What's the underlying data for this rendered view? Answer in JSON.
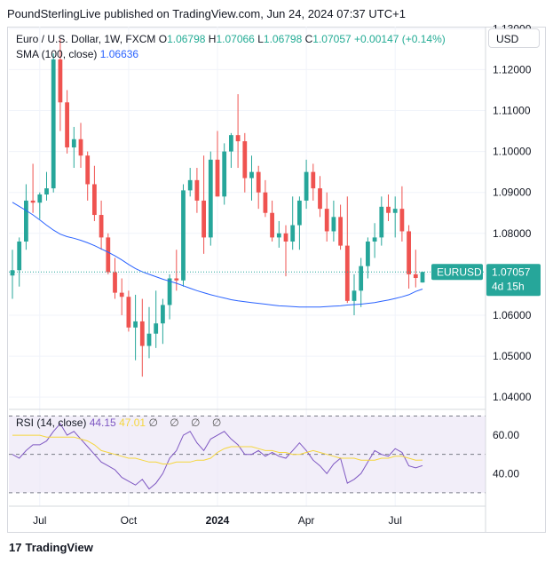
{
  "header": {
    "text": "PoundSterlingLive published on TradingView.com, Jun 24, 2024 07:37 UTC+1"
  },
  "legend": {
    "symbol": "Euro / U.S. Dollar, 1W, FXCM",
    "o_label": "O",
    "o_value": "1.06798",
    "h_label": "H",
    "h_value": "1.07066",
    "l_label": "L",
    "l_value": "1.06798",
    "c_label": "C",
    "c_value": "1.07057",
    "change": "+0.00147 (+0.14%)",
    "sma_label": "SMA (100, close)",
    "sma_value": "1.06636"
  },
  "currency_button": "USD",
  "price_tag": {
    "symbol": "EURUSD",
    "price": "1.07057",
    "countdown": "4d 15h"
  },
  "rsi_legend": {
    "label": "RSI (14, close)",
    "rsi_value": "44.15",
    "sma_value": "47.01",
    "icons": "∅ ∅ ∅ ∅"
  },
  "branding": {
    "logo_mark": "17",
    "name": "TradingView"
  },
  "colors": {
    "up": "#26a69a",
    "down": "#ef5350",
    "sma": "#2962ff",
    "rsi": "#7e57c2",
    "rsi_sma": "#f5d63d",
    "rsi_band": "#ede7f6"
  },
  "chart_data": [
    {
      "type": "candlestick",
      "title": "Euro / U.S. Dollar, 1W, FXCM",
      "y_ticks": [
        "1.04000",
        "1.05000",
        "1.06000",
        "1.07000",
        "1.08000",
        "1.09000",
        "1.10000",
        "1.11000",
        "1.12000",
        "1.13000"
      ],
      "ylim": [
        1.037,
        1.1305
      ],
      "x_ticks": [
        {
          "label": "Jul",
          "index": 4
        },
        {
          "label": "Oct",
          "index": 17
        },
        {
          "label": "2024",
          "index": 30
        },
        {
          "label": "Apr",
          "index": 43
        },
        {
          "label": "Jul",
          "index": 56
        }
      ],
      "ohlc": [
        [
          1.0697,
          1.076,
          1.064,
          1.071
        ],
        [
          1.071,
          1.079,
          1.067,
          1.078
        ],
        [
          1.078,
          1.092,
          1.076,
          1.088
        ],
        [
          1.088,
          1.097,
          1.085,
          1.0875
        ],
        [
          1.0875,
          1.09,
          1.0835,
          1.0895
        ],
        [
          1.0895,
          1.095,
          1.088,
          1.091
        ],
        [
          1.091,
          1.124,
          1.09,
          1.1225
        ],
        [
          1.1225,
          1.1275,
          1.105,
          1.112
        ],
        [
          1.112,
          1.115,
          1.0995,
          1.101
        ],
        [
          1.101,
          1.106,
          1.096,
          1.103
        ],
        [
          1.103,
          1.107,
          1.096,
          1.099
        ],
        [
          1.099,
          1.1,
          1.088,
          1.092
        ],
        [
          1.092,
          1.0965,
          1.083,
          1.0845
        ],
        [
          1.0845,
          1.088,
          1.076,
          1.079
        ],
        [
          1.079,
          1.08,
          1.07,
          1.0705
        ],
        [
          1.0705,
          1.074,
          1.064,
          1.0655
        ],
        [
          1.0655,
          1.069,
          1.06,
          1.0645
        ],
        [
          1.0645,
          1.066,
          1.056,
          1.057
        ],
        [
          1.057,
          1.065,
          1.049,
          1.0585
        ],
        [
          1.0585,
          1.064,
          1.045,
          1.0525
        ],
        [
          1.0525,
          1.062,
          1.0495,
          1.0555
        ],
        [
          1.0555,
          1.066,
          1.052,
          1.058
        ],
        [
          1.058,
          1.064,
          1.053,
          1.0625
        ],
        [
          1.0625,
          1.07,
          1.059,
          1.069
        ],
        [
          1.069,
          1.076,
          1.066,
          1.0685
        ],
        [
          1.0685,
          1.092,
          1.067,
          1.0905
        ],
        [
          1.0905,
          1.096,
          1.089,
          1.093
        ],
        [
          1.093,
          1.096,
          1.085,
          1.088
        ],
        [
          1.088,
          1.099,
          1.075,
          1.079
        ],
        [
          1.079,
          1.1,
          1.077,
          1.098
        ],
        [
          1.098,
          1.105,
          1.089,
          1.089
        ],
        [
          1.089,
          1.102,
          1.087,
          1.1
        ],
        [
          1.1,
          1.1045,
          1.096,
          1.104
        ],
        [
          1.104,
          1.114,
          1.096,
          1.1025
        ],
        [
          1.1025,
          1.1045,
          1.09,
          1.0935
        ],
        [
          1.0935,
          1.099,
          1.088,
          1.095
        ],
        [
          1.095,
          1.0965,
          1.086,
          1.09
        ],
        [
          1.09,
          1.093,
          1.084,
          1.085
        ],
        [
          1.085,
          1.088,
          1.078,
          1.079
        ],
        [
          1.079,
          1.083,
          1.0765,
          1.08
        ],
        [
          1.08,
          1.082,
          1.0695,
          1.078
        ],
        [
          1.078,
          1.089,
          1.076,
          1.082
        ],
        [
          1.082,
          1.089,
          1.076,
          1.088
        ],
        [
          1.088,
          1.098,
          1.086,
          1.095
        ],
        [
          1.095,
          1.097,
          1.088,
          1.091
        ],
        [
          1.091,
          1.094,
          1.084,
          1.086
        ],
        [
          1.086,
          1.09,
          1.078,
          1.0805
        ],
        [
          1.0805,
          1.088,
          1.078,
          1.084
        ],
        [
          1.084,
          1.087,
          1.076,
          1.077
        ],
        [
          1.077,
          1.089,
          1.063,
          1.0635
        ],
        [
          1.0635,
          1.07,
          1.06,
          1.066
        ],
        [
          1.066,
          1.074,
          1.062,
          1.072
        ],
        [
          1.072,
          1.079,
          1.069,
          1.078
        ],
        [
          1.078,
          1.0825,
          1.074,
          1.079
        ],
        [
          1.079,
          1.089,
          1.077,
          1.0865
        ],
        [
          1.0865,
          1.0895,
          1.083,
          1.085
        ],
        [
          1.085,
          1.089,
          1.079,
          1.086
        ],
        [
          1.086,
          1.0915,
          1.078,
          1.0805
        ],
        [
          1.0805,
          1.082,
          1.0665,
          1.07
        ],
        [
          1.07,
          1.076,
          1.0668,
          1.0691
        ],
        [
          1.068,
          1.07066,
          1.06798,
          1.07057
        ]
      ],
      "sma": {
        "name": "SMA (100, close)",
        "from_index": 0,
        "values": [
          1.0876,
          1.0866,
          1.0856,
          1.0845,
          1.0833,
          1.082,
          1.0808,
          1.0798,
          1.0792,
          1.0788,
          1.0783,
          1.0777,
          1.077,
          1.0762,
          1.0754,
          1.0745,
          1.0735,
          1.0724,
          1.0714,
          1.0706,
          1.07,
          1.0694,
          1.0688,
          1.0683,
          1.0678,
          1.0672,
          1.0666,
          1.066,
          1.0655,
          1.065,
          1.0646,
          1.0642,
          1.0638,
          1.0635,
          1.0633,
          1.0631,
          1.0629,
          1.0627,
          1.0625,
          1.0623,
          1.0622,
          1.0621,
          1.062,
          1.062,
          1.062,
          1.062,
          1.0621,
          1.0622,
          1.0623,
          1.0625,
          1.0626,
          1.0627,
          1.0629,
          1.0631,
          1.0634,
          1.0637,
          1.0641,
          1.0645,
          1.065,
          1.0658,
          1.0664
        ]
      },
      "last_price": 1.07057
    },
    {
      "type": "line",
      "title": "RSI (14, close)",
      "y_ticks": [
        "40.00",
        "60.00"
      ],
      "ylim": [
        23,
        73
      ],
      "bands": [
        30,
        50,
        70
      ],
      "series": [
        {
          "name": "RSI",
          "values": [
            50,
            48,
            52,
            55,
            55,
            57,
            62,
            66,
            60,
            62,
            58,
            54,
            50,
            46,
            44,
            42,
            38,
            36,
            34,
            37,
            32,
            35,
            40,
            48,
            52,
            60,
            62,
            56,
            52,
            58,
            60,
            62,
            58,
            55,
            50,
            50,
            52,
            49,
            51,
            49,
            48,
            52,
            56,
            52,
            47,
            44,
            40,
            45,
            48,
            35,
            37,
            40,
            46,
            52,
            50,
            49,
            53,
            51,
            44,
            43,
            44.15
          ]
        },
        {
          "name": "SMA",
          "values": [
            60,
            60,
            60,
            60,
            60,
            59,
            59,
            59,
            59,
            59,
            58,
            57,
            55,
            52,
            51,
            50,
            49,
            48,
            48,
            47,
            46,
            46,
            45,
            45,
            46,
            46,
            46,
            47,
            47,
            48,
            51,
            53,
            54,
            54,
            54,
            54,
            53,
            52,
            52,
            51,
            51,
            50,
            50,
            51,
            52,
            51,
            50,
            49,
            48,
            48,
            48,
            47,
            47,
            47,
            48,
            48,
            49,
            49,
            48,
            47,
            47.01
          ]
        }
      ]
    }
  ]
}
